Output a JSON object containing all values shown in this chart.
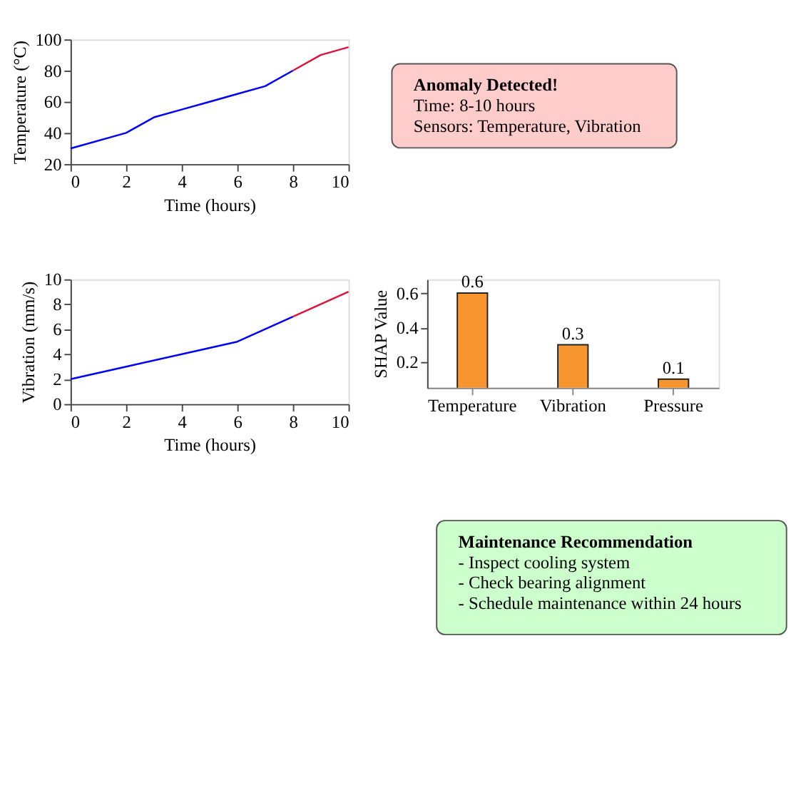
{
  "chart_data": [
    {
      "type": "line",
      "xlabel": "Time (hours)",
      "ylabel": "Temperature (°C)",
      "xlim": [
        0,
        10
      ],
      "xticks": [
        0,
        2,
        4,
        6,
        8,
        10
      ],
      "ylim": [
        20,
        100
      ],
      "yticks": [
        20,
        40,
        60,
        80,
        100
      ],
      "grid": false,
      "marker": "none",
      "line_style": "solid",
      "series": [
        {
          "color": "#0000ff",
          "x": [
            0,
            2,
            3,
            4,
            5,
            6,
            7,
            8
          ],
          "values": [
            30,
            40,
            50,
            55,
            60,
            65,
            70,
            80
          ]
        },
        {
          "color": "#dc143c",
          "x": [
            8,
            9,
            10
          ],
          "values": [
            80,
            90,
            95
          ]
        }
      ]
    },
    {
      "type": "other",
      "title": "Anomaly Detected!",
      "color": "#ffcccc",
      "annotations": [
        "Time: 8-10 hours",
        "Sensors: Temperature, Vibration"
      ]
    },
    {
      "type": "line",
      "xlabel": "Time (hours)",
      "ylabel": "Vibration (mm/s)",
      "xlim": [
        0,
        10
      ],
      "xticks": [
        0,
        2,
        4,
        6,
        8,
        10
      ],
      "ylim": [
        0,
        10
      ],
      "yticks": [
        0,
        2,
        4,
        6,
        8,
        10
      ],
      "grid": false,
      "marker": "none",
      "line_style": "solid",
      "series": [
        {
          "color": "#0000ff",
          "x": [
            0,
            2,
            4,
            6,
            8
          ],
          "values": [
            2,
            3,
            4,
            5,
            7
          ]
        },
        {
          "color": "#dc143c",
          "x": [
            8,
            10
          ],
          "values": [
            7,
            9
          ]
        }
      ]
    },
    {
      "type": "bar",
      "ylabel": "SHAP Value",
      "categories": [
        "Temperature",
        "Vibration",
        "Pressure"
      ],
      "values": [
        0.6,
        0.3,
        0.1
      ],
      "colors": [
        "#f7962f",
        "#f7962f",
        "#f7962f"
      ],
      "ylim": [
        0.05,
        0.68
      ],
      "yticks": [
        0.2,
        0.4,
        0.6
      ],
      "data_labels": true,
      "grid": false
    },
    {
      "type": "other",
      "title": "Maintenance Recommendation",
      "color": "#ccffcc",
      "annotations": [
        "- Inspect cooling system",
        "- Check bearing alignment",
        "- Schedule maintenance within 24 hours"
      ]
    }
  ]
}
